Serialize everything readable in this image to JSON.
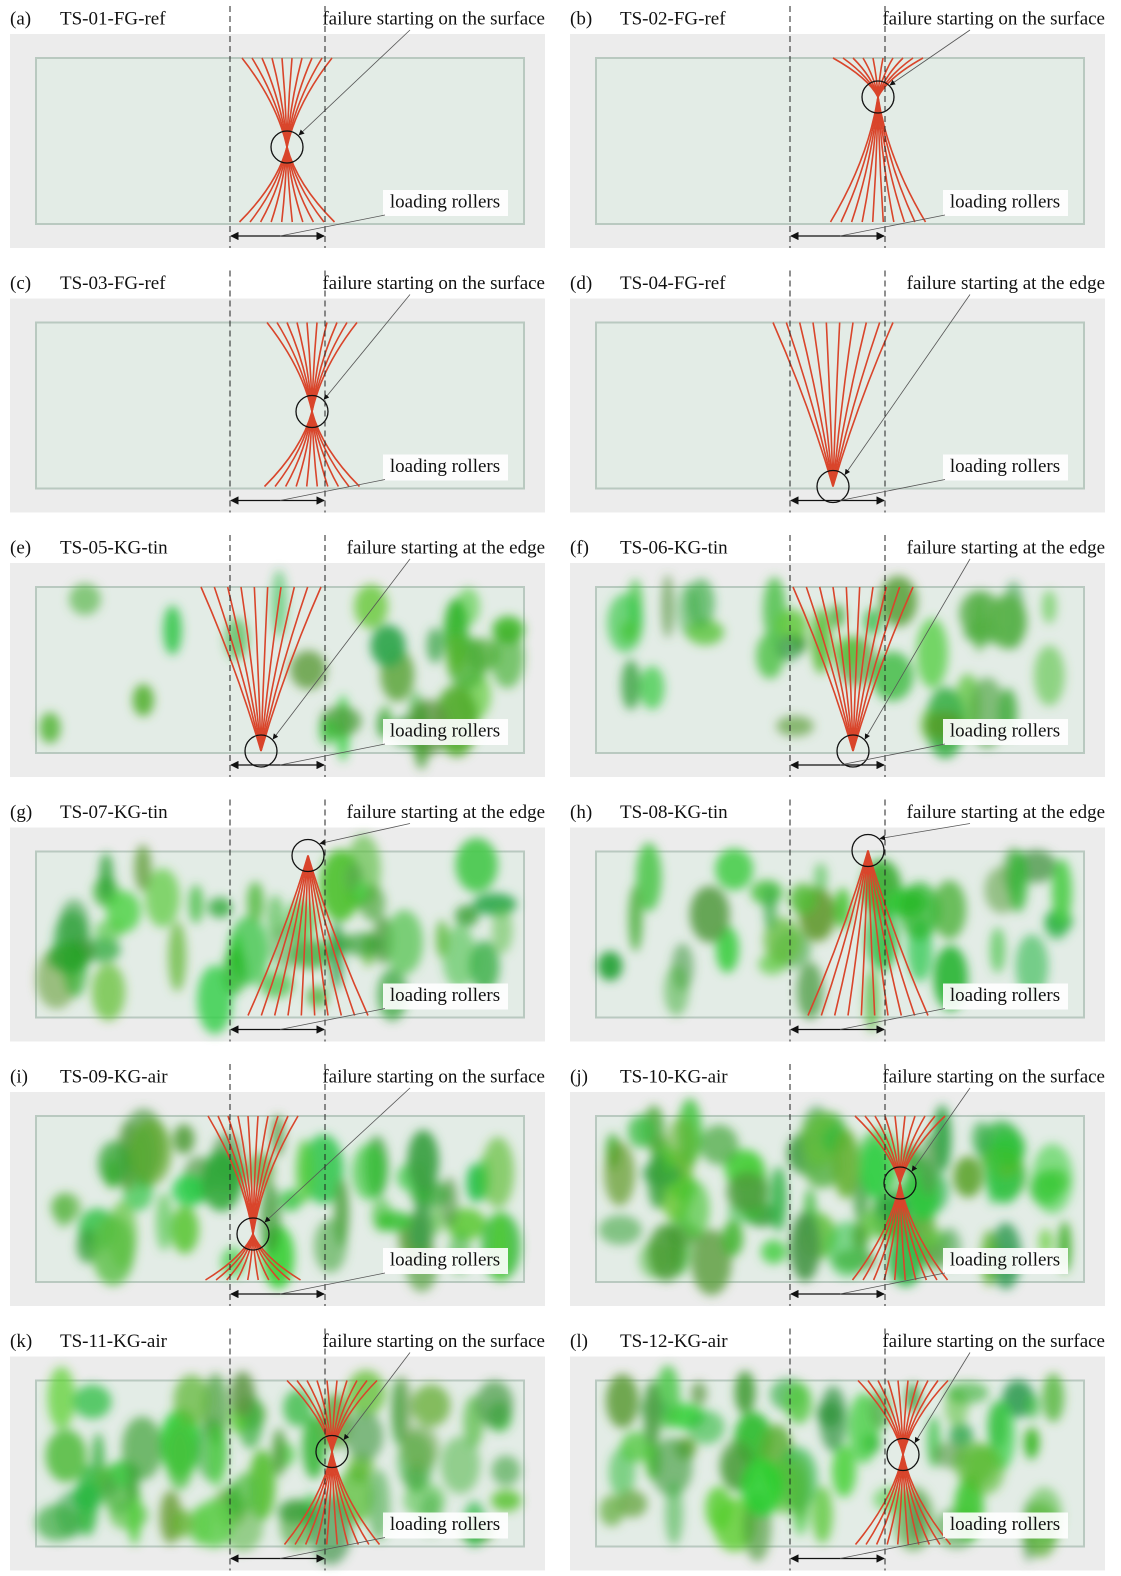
{
  "panels": [
    {
      "label": "(a)",
      "specimen": "TS-01-FG-ref",
      "failure": "failure starting on the surface",
      "rollers": "loading rollers"
    },
    {
      "label": "(b)",
      "specimen": "TS-02-FG-ref",
      "failure": "failure starting on the surface",
      "rollers": "loading rollers"
    },
    {
      "label": "(c)",
      "specimen": "TS-03-FG-ref",
      "failure": "failure starting on the surface",
      "rollers": "loading rollers"
    },
    {
      "label": "(d)",
      "specimen": "TS-04-FG-ref",
      "failure": "failure starting at the edge",
      "rollers": "loading rollers"
    },
    {
      "label": "(e)",
      "specimen": "TS-05-KG-tin",
      "failure": "failure starting at the edge",
      "rollers": "loading rollers"
    },
    {
      "label": "(f)",
      "specimen": "TS-06-KG-tin",
      "failure": "failure starting at the edge",
      "rollers": "loading rollers"
    },
    {
      "label": "(g)",
      "specimen": "TS-07-KG-tin",
      "failure": "failure starting at the edge",
      "rollers": "loading rollers"
    },
    {
      "label": "(h)",
      "specimen": "TS-08-KG-tin",
      "failure": "failure starting at the edge",
      "rollers": "loading rollers"
    },
    {
      "label": "(i)",
      "specimen": "TS-09-KG-air",
      "failure": "failure starting on the surface",
      "rollers": "loading rollers"
    },
    {
      "label": "(j)",
      "specimen": "TS-10-KG-air",
      "failure": "failure starting on the surface",
      "rollers": "loading rollers"
    },
    {
      "label": "(k)",
      "specimen": "TS-11-KG-air",
      "failure": "failure starting on the surface",
      "rollers": "loading rollers"
    },
    {
      "label": "(l)",
      "specimen": "TS-12-KG-air",
      "failure": "failure starting on the surface",
      "rollers": "loading rollers"
    }
  ]
}
